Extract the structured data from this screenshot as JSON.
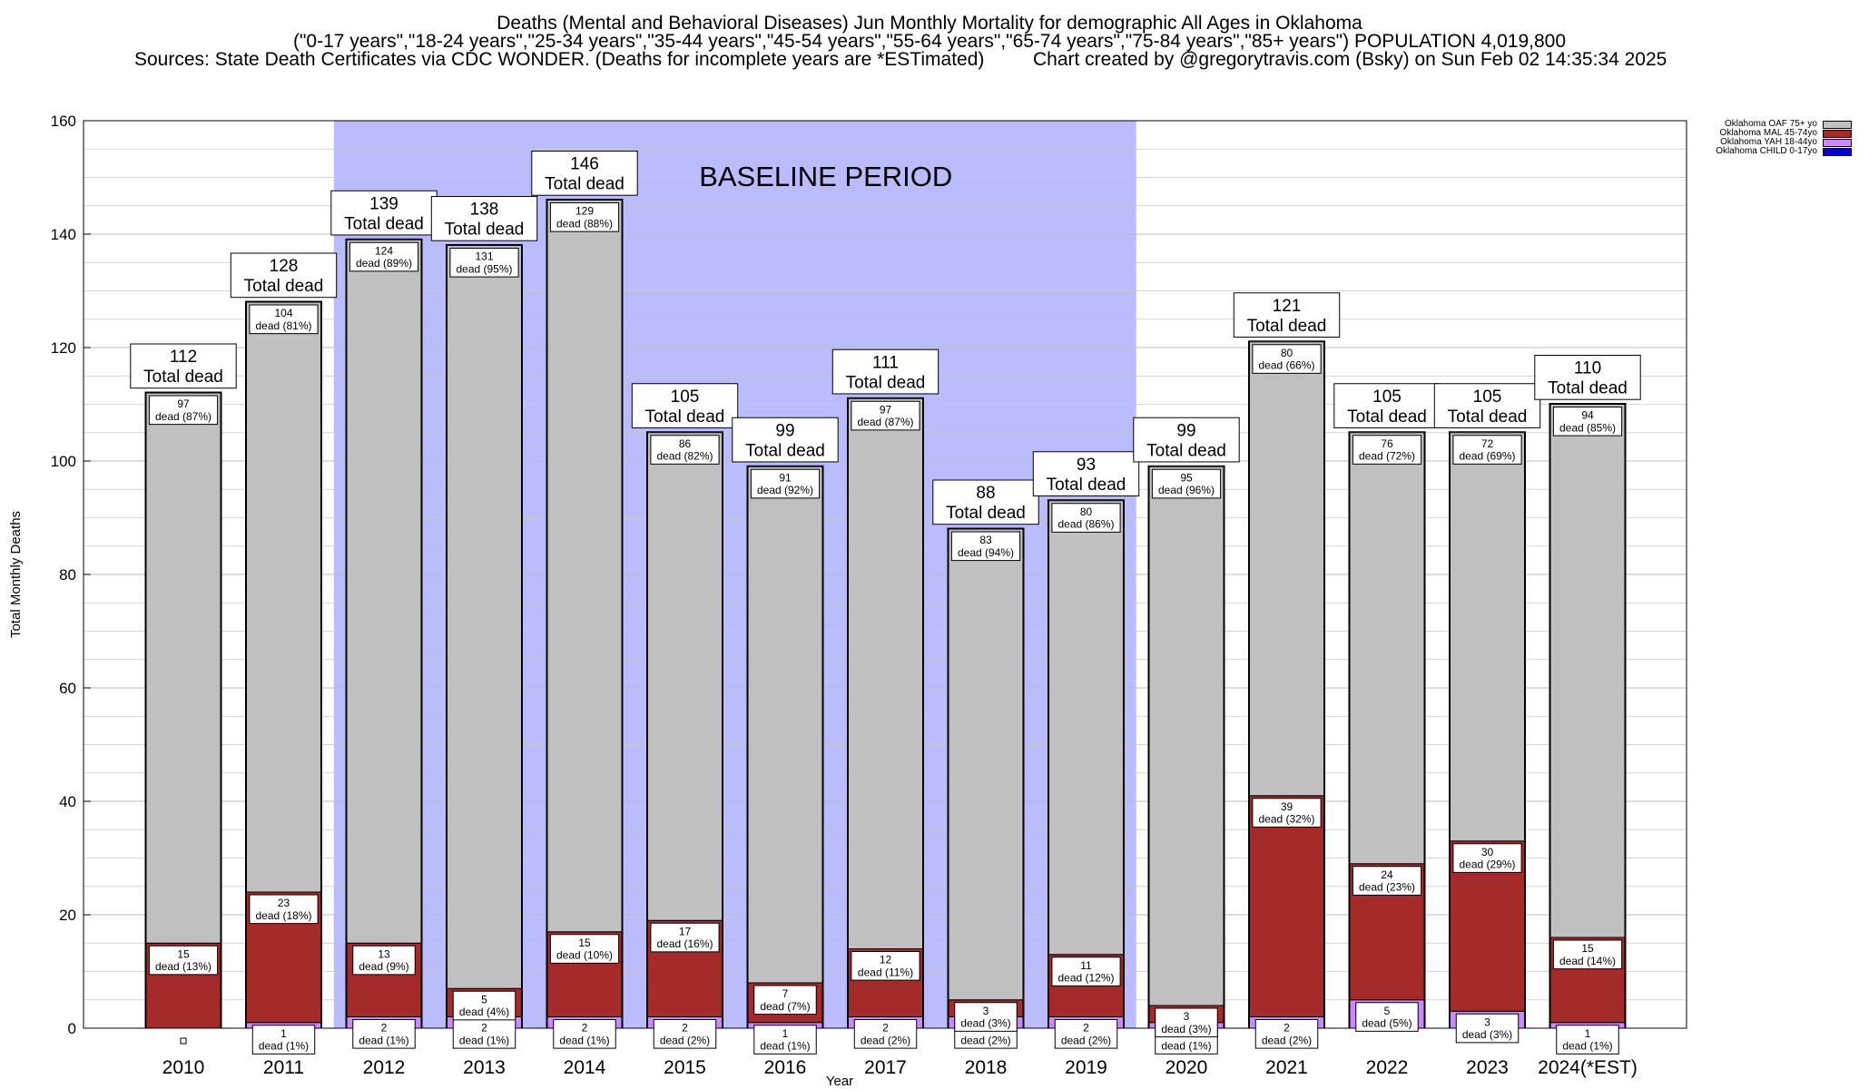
{
  "header": {
    "title": "Deaths (Mental and Behavioral Diseases) Jun Monthly Mortality for demographic All Ages in Oklahoma",
    "subtitle": "(\"0-17 years\",\"18-24 years\",\"25-34 years\",\"35-44 years\",\"45-54 years\",\"55-64 years\",\"65-74 years\",\"75-84 years\",\"85+ years\") POPULATION 4,019,800",
    "sources": "Sources: State Death Certificates via CDC WONDER. (Deaths for incomplete years are *ESTimated)",
    "credit": "Chart created by @gregorytravis.com (Bsky) on Sun Feb 02 14:35:34 2025"
  },
  "chart_data": {
    "type": "bar",
    "stacked": true,
    "title": "Deaths (Mental and Behavioral Diseases) Jun Monthly Mortality for demographic All Ages in Oklahoma",
    "xlabel": "Year",
    "ylabel": "Total Monthly Deaths",
    "ylim": [
      0,
      160
    ],
    "yticks": [
      0,
      20,
      40,
      60,
      80,
      100,
      120,
      140,
      160
    ],
    "grid": true,
    "legend_position": "top-right",
    "annotation": "BASELINE PERIOD",
    "baseline_period": [
      "2012",
      "2019"
    ],
    "total_label_suffix": "Total dead",
    "segment_label_suffix": "dead",
    "categories": [
      "2010",
      "2011",
      "2012",
      "2013",
      "2014",
      "2015",
      "2016",
      "2017",
      "2018",
      "2019",
      "2020",
      "2021",
      "2022",
      "2023",
      "2024(*EST)"
    ],
    "totals": [
      112,
      128,
      139,
      138,
      146,
      105,
      99,
      111,
      88,
      93,
      99,
      121,
      105,
      105,
      110
    ],
    "series": [
      {
        "name": "Oklahoma CHILD 0-17yo",
        "color": "#0000cc",
        "values": [
          0,
          0,
          0,
          0,
          0,
          0,
          0,
          0,
          0,
          0,
          0,
          0,
          0,
          0,
          0
        ],
        "pct": [
          0,
          0,
          0,
          0,
          0,
          0,
          0,
          0,
          0,
          0,
          0,
          0,
          0,
          0,
          0
        ]
      },
      {
        "name": "Oklahoma YAH 18-44yo",
        "color": "#cc88ff",
        "values": [
          0,
          1,
          2,
          2,
          2,
          2,
          1,
          2,
          2,
          2,
          1,
          2,
          5,
          3,
          1
        ],
        "pct": [
          0,
          1,
          1,
          1,
          1,
          2,
          1,
          2,
          2,
          2,
          1,
          2,
          5,
          3,
          1
        ]
      },
      {
        "name": "Oklahoma MAL 45-74yo",
        "color": "#a52a2a",
        "values": [
          15,
          23,
          13,
          5,
          15,
          17,
          7,
          12,
          3,
          11,
          3,
          39,
          24,
          30,
          15
        ],
        "pct": [
          13,
          18,
          9,
          4,
          10,
          16,
          7,
          11,
          3,
          12,
          3,
          32,
          23,
          29,
          14
        ]
      },
      {
        "name": "Oklahoma OAF 75+ yo",
        "color": "#c0c0c0",
        "values": [
          97,
          104,
          124,
          131,
          129,
          86,
          91,
          97,
          83,
          80,
          95,
          80,
          76,
          72,
          94
        ],
        "pct": [
          87,
          81,
          89,
          95,
          88,
          82,
          92,
          87,
          94,
          86,
          96,
          66,
          72,
          69,
          85
        ]
      }
    ],
    "colors": {
      "baseline_shade": "#bbbbff",
      "grid": "#c8c8c8"
    }
  }
}
